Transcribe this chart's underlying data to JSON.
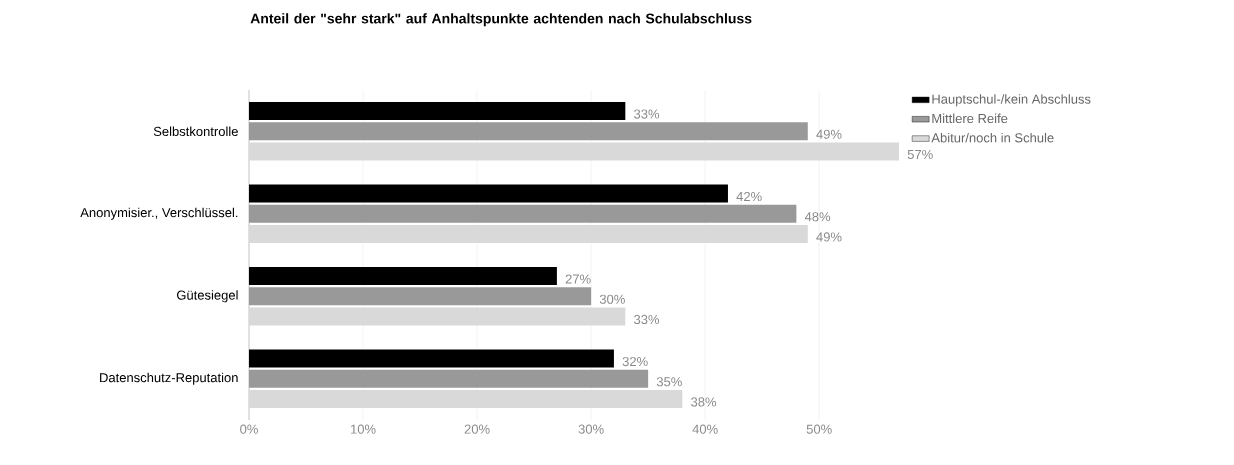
{
  "chart_data": {
    "type": "bar",
    "orientation": "horizontal",
    "title": "Anteil der \"sehr stark\" auf Anhaltspunkte achtenden nach Schulabschluss",
    "categories": [
      "Selbstkontrolle",
      "Anonymisier., Verschlüssel.",
      "Gütesiegel",
      "Datenschutz-Reputation"
    ],
    "series": [
      {
        "name": "Hauptschul-/kein Abschluss",
        "color": "#000000",
        "values": [
          33,
          42,
          27,
          32
        ],
        "value_labels": [
          "33%",
          "42%",
          "27%",
          "32%"
        ]
      },
      {
        "name": "Mittlere Reife",
        "color": "#999999",
        "values": [
          49,
          48,
          30,
          35
        ],
        "value_labels": [
          "49%",
          "48%",
          "30%",
          "35%"
        ]
      },
      {
        "name": "Abitur/noch in Schule",
        "color": "#d9d9d9",
        "values": [
          57,
          49,
          33,
          38
        ],
        "value_labels": [
          "57%",
          "49%",
          "33%",
          "38%"
        ]
      }
    ],
    "xlim": [
      0,
      57
    ],
    "xticks": [
      {
        "value": 0,
        "label": "0%"
      },
      {
        "value": 10,
        "label": "10%"
      },
      {
        "value": 20,
        "label": "20%"
      },
      {
        "value": 30,
        "label": "30%"
      },
      {
        "value": 40,
        "label": "40%"
      },
      {
        "value": 50,
        "label": "50%"
      }
    ],
    "grid": "x",
    "legend": "top right"
  }
}
